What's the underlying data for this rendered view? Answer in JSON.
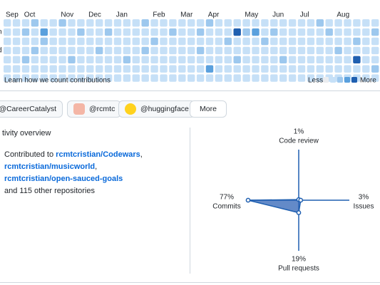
{
  "calendar": {
    "months": [
      "Sep",
      "Oct",
      "Nov",
      "Dec",
      "Jan",
      "Feb",
      "Mar",
      "Apr",
      "May",
      "Jun",
      "Jul",
      "Aug"
    ],
    "day_labels": [
      "n",
      "d"
    ],
    "levels": [
      [
        1,
        1,
        1,
        2,
        1,
        1,
        2,
        1,
        1,
        1,
        1,
        1,
        1,
        1,
        1,
        2,
        1,
        1,
        1,
        1,
        1,
        1,
        2,
        1,
        1,
        1,
        1,
        1,
        1,
        1,
        1,
        1,
        1,
        1,
        2,
        1,
        1,
        1,
        1,
        1,
        1
      ],
      [
        1,
        1,
        2,
        1,
        3,
        1,
        1,
        1,
        2,
        1,
        1,
        2,
        1,
        1,
        1,
        1,
        1,
        1,
        2,
        1,
        1,
        2,
        1,
        1,
        1,
        4,
        2,
        3,
        1,
        2,
        1,
        1,
        1,
        1,
        1,
        2,
        1,
        1,
        1,
        1,
        2
      ],
      [
        1,
        1,
        1,
        1,
        2,
        1,
        1,
        1,
        1,
        1,
        1,
        1,
        1,
        1,
        1,
        1,
        2,
        1,
        1,
        1,
        1,
        1,
        1,
        1,
        2,
        1,
        1,
        1,
        2,
        1,
        1,
        1,
        1,
        1,
        1,
        1,
        1,
        1,
        2,
        1,
        1
      ],
      [
        1,
        1,
        1,
        2,
        1,
        1,
        1,
        1,
        1,
        1,
        2,
        1,
        1,
        1,
        1,
        2,
        1,
        1,
        1,
        1,
        1,
        2,
        1,
        1,
        1,
        1,
        1,
        1,
        1,
        1,
        1,
        1,
        1,
        1,
        1,
        1,
        2,
        1,
        1,
        1,
        1
      ],
      [
        1,
        1,
        2,
        1,
        1,
        1,
        1,
        2,
        1,
        1,
        1,
        1,
        1,
        2,
        1,
        1,
        1,
        1,
        1,
        1,
        1,
        1,
        1,
        1,
        1,
        2,
        1,
        1,
        1,
        1,
        2,
        1,
        1,
        1,
        1,
        1,
        1,
        1,
        4,
        1,
        1
      ],
      [
        1,
        1,
        1,
        1,
        1,
        1,
        1,
        1,
        1,
        1,
        1,
        1,
        1,
        1,
        1,
        1,
        1,
        1,
        1,
        1,
        1,
        1,
        3,
        1,
        1,
        1,
        1,
        1,
        1,
        1,
        1,
        1,
        1,
        1,
        1,
        1,
        1,
        1,
        1,
        1,
        2
      ],
      [
        1,
        1,
        1,
        1,
        1,
        1,
        1,
        1,
        1,
        1,
        1,
        1,
        1,
        1,
        1,
        1,
        1,
        1,
        1,
        1,
        1,
        1,
        1,
        1,
        1,
        1,
        1,
        1,
        1,
        1,
        1,
        1,
        1,
        1,
        1,
        1,
        1,
        1,
        1,
        1,
        1
      ]
    ],
    "learn_link": "Learn how we count contributions",
    "less": "Less",
    "more": "More"
  },
  "organizations": [
    "@CareerCatalyst",
    "@rcmtc",
    "@huggingface"
  ],
  "more_button": "More",
  "activity": {
    "heading": "tivity overview",
    "contributed_to": "Contributed to",
    "repos": [
      "rcmtcristian/Codewars",
      "rcmtcristian/musicworld",
      "rcmtcristian/open-sauced-goals"
    ],
    "others": "and 115 other repositories"
  },
  "chart_data": {
    "type": "radar",
    "categories": [
      "Code review",
      "Issues",
      "Pull requests",
      "Commits"
    ],
    "values": [
      1,
      3,
      19,
      77
    ],
    "value_labels": [
      "1%",
      "3%",
      "19%",
      "77%"
    ]
  }
}
